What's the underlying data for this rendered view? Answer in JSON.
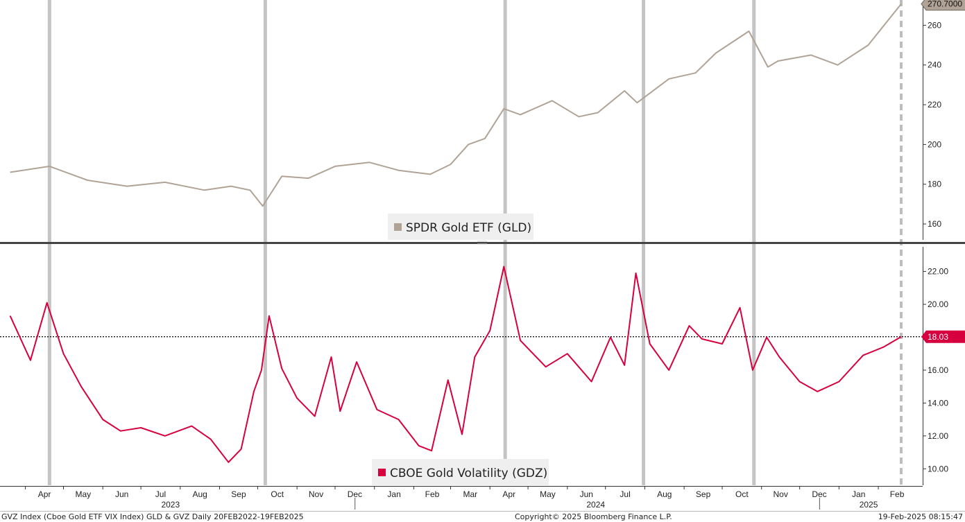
{
  "chart_data": [
    {
      "type": "line",
      "panel": "top",
      "ylim": [
        152,
        272
      ],
      "yticks": [
        160,
        180,
        200,
        220,
        240,
        260
      ],
      "legend": {
        "label": "SPDR Gold ETF (GLD)",
        "color": "#b0a396"
      },
      "last_value_label": "270.7000",
      "last_value": 270.7,
      "series": [
        {
          "name": "SPDR Gold ETF (GLD)",
          "color": "#b0a396",
          "x": [
            "2023-03-20",
            "2023-04-20",
            "2023-05-20",
            "2023-06-20",
            "2023-07-20",
            "2023-08-20",
            "2023-09-10",
            "2023-09-25",
            "2023-10-05",
            "2023-10-20",
            "2023-11-10",
            "2023-12-01",
            "2023-12-28",
            "2024-01-20",
            "2024-02-14",
            "2024-03-01",
            "2024-03-15",
            "2024-03-28",
            "2024-04-12",
            "2024-04-25",
            "2024-05-20",
            "2024-06-10",
            "2024-06-25",
            "2024-07-16",
            "2024-07-26",
            "2024-08-20",
            "2024-09-10",
            "2024-09-26",
            "2024-10-22",
            "2024-11-06",
            "2024-11-14",
            "2024-12-10",
            "2024-12-31",
            "2025-01-24",
            "2025-02-19"
          ],
          "values": [
            186,
            189,
            182,
            179,
            181,
            177,
            179,
            177,
            169,
            184,
            183,
            189,
            191,
            187,
            185,
            190,
            200,
            203,
            218,
            215,
            222,
            214,
            216,
            227,
            221,
            233,
            236,
            246,
            257,
            239,
            242,
            245,
            240,
            250,
            270.7
          ]
        }
      ]
    },
    {
      "type": "line",
      "panel": "bottom",
      "ylim": [
        9,
        23.5
      ],
      "yticks": [
        "10.00",
        "12.00",
        "14.00",
        "16.00",
        "18.00",
        "20.00",
        "22.00"
      ],
      "legend": {
        "label": "CBOE Gold Volatility (GDZ)",
        "color": "#d6003e"
      },
      "last_value_label": "18.03",
      "last_value": 18.03,
      "reference_line": 18.03,
      "series": [
        {
          "name": "CBOE Gold Volatility (GDZ)",
          "color": "#d6003e",
          "x": [
            "2023-03-20",
            "2023-04-05",
            "2023-04-18",
            "2023-05-01",
            "2023-05-15",
            "2023-06-01",
            "2023-06-15",
            "2023-07-01",
            "2023-07-20",
            "2023-08-10",
            "2023-08-25",
            "2023-09-08",
            "2023-09-18",
            "2023-09-28",
            "2023-10-04",
            "2023-10-10",
            "2023-10-20",
            "2023-11-01",
            "2023-11-15",
            "2023-11-28",
            "2023-12-05",
            "2023-12-18",
            "2024-01-03",
            "2024-01-20",
            "2024-02-05",
            "2024-02-15",
            "2024-02-28",
            "2024-03-10",
            "2024-03-20",
            "2024-04-01",
            "2024-04-12",
            "2024-04-25",
            "2024-05-15",
            "2024-06-01",
            "2024-06-20",
            "2024-07-05",
            "2024-07-16",
            "2024-07-25",
            "2024-08-05",
            "2024-08-20",
            "2024-09-05",
            "2024-09-15",
            "2024-10-01",
            "2024-10-15",
            "2024-10-25",
            "2024-11-05",
            "2024-11-15",
            "2024-12-01",
            "2024-12-15",
            "2025-01-01",
            "2025-01-20",
            "2025-02-05",
            "2025-02-19"
          ],
          "values": [
            19.3,
            16.6,
            20.1,
            17.0,
            15.0,
            13.0,
            12.3,
            12.5,
            12.0,
            12.6,
            11.8,
            10.4,
            11.2,
            14.7,
            16.0,
            19.3,
            16.1,
            14.3,
            13.2,
            16.8,
            13.5,
            16.5,
            13.6,
            13.0,
            11.4,
            11.1,
            15.4,
            12.1,
            16.8,
            18.4,
            22.3,
            17.8,
            16.2,
            17.0,
            15.3,
            18.0,
            16.3,
            21.9,
            17.6,
            16.0,
            18.7,
            17.9,
            17.6,
            19.8,
            16.0,
            18.0,
            16.8,
            15.3,
            14.7,
            15.3,
            16.9,
            17.4,
            18.03
          ]
        }
      ]
    }
  ],
  "xaxis": {
    "months": [
      "Apr",
      "May",
      "Jun",
      "Jul",
      "Aug",
      "Sep",
      "Oct",
      "Nov",
      "Dec",
      "Jan",
      "Feb",
      "Mar",
      "Apr",
      "May",
      "Jun",
      "Jul",
      "Aug",
      "Sep",
      "Oct",
      "Nov",
      "Dec",
      "Jan",
      "Feb"
    ],
    "month_dates": [
      "2023-04-01",
      "2023-05-01",
      "2023-06-01",
      "2023-07-01",
      "2023-08-01",
      "2023-09-01",
      "2023-10-01",
      "2023-11-01",
      "2023-12-01",
      "2024-01-01",
      "2024-02-01",
      "2024-03-01",
      "2024-04-01",
      "2024-05-01",
      "2024-06-01",
      "2024-07-01",
      "2024-08-01",
      "2024-09-01",
      "2024-10-01",
      "2024-11-01",
      "2024-12-01",
      "2025-01-01",
      "2025-02-01"
    ],
    "years": [
      {
        "label": "2023",
        "date": "2023-08-01"
      },
      {
        "label": "2024",
        "date": "2024-07-01"
      },
      {
        "label": "2025",
        "date": "2025-02-01"
      }
    ],
    "year_dividers": [
      "2024-01-01",
      "2025-01-01"
    ]
  },
  "event_lines": [
    "2023-04-20",
    "2023-10-07",
    "2024-04-13",
    "2024-07-31",
    "2024-10-26"
  ],
  "current_line": "2025-02-19",
  "footer": {
    "left": "GVZ Index (Cboe Gold ETF VIX Index) GLD & GVZ  Daily 20FEB2022-19FEB2025",
    "center": "Copyright© 2025 Bloomberg Finance L.P.",
    "right": "19-Feb-2025 08:15:47"
  }
}
